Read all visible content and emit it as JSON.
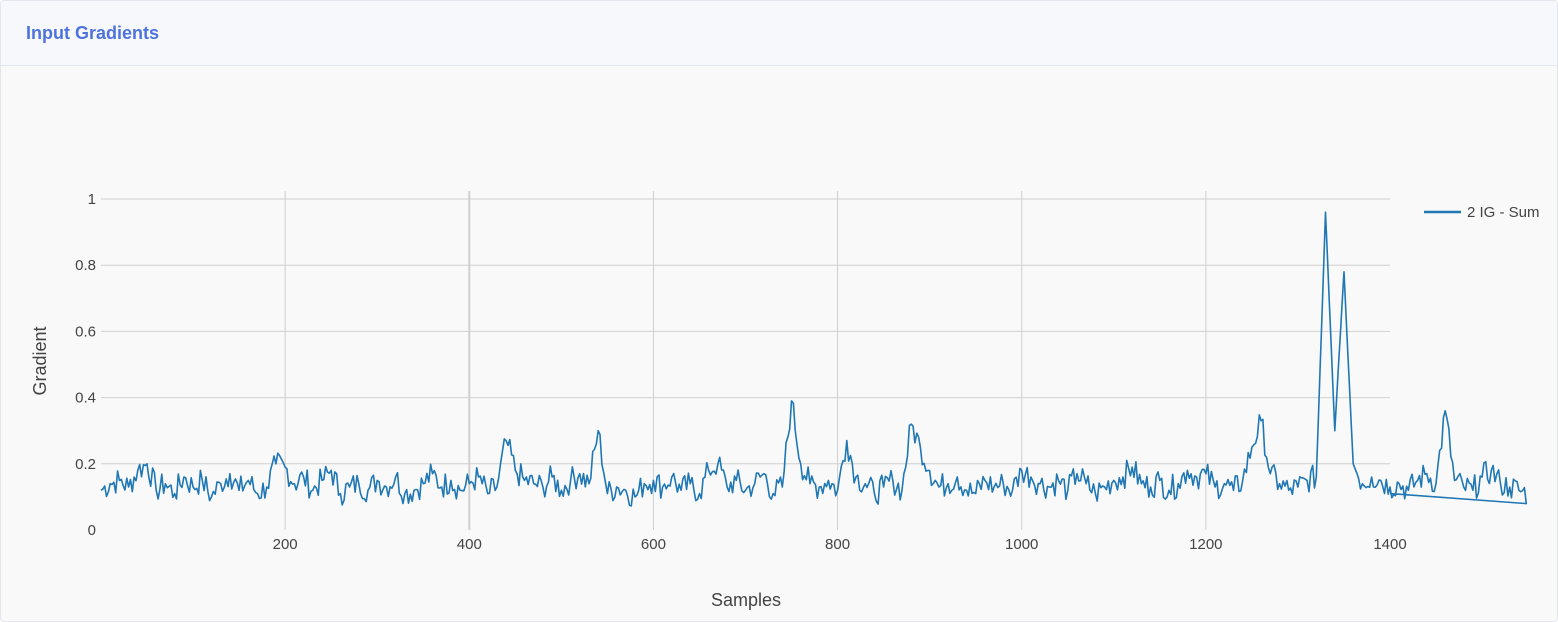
{
  "card": {
    "title": "Input Gradients"
  },
  "colors": {
    "accent": "#4e73df",
    "series": "#1f77b4",
    "grid": "#d0d0d0",
    "background": "#f9f9f9"
  },
  "chart_data": {
    "type": "line",
    "xlabel": "Samples",
    "ylabel": "Gradient",
    "xlim": [
      0,
      1400
    ],
    "ylim": [
      0,
      1
    ],
    "x_ticks": [
      200,
      400,
      600,
      800,
      1000,
      1200,
      1400
    ],
    "y_ticks": [
      0,
      0.2,
      0.4,
      0.6,
      0.8,
      1
    ],
    "y_tick_labels": [
      "0",
      "0.2",
      "0.4",
      "0.6",
      "0.8",
      "1"
    ],
    "x_tick_labels": [
      "200",
      "400",
      "600",
      "800",
      "1000",
      "1200",
      "1400"
    ],
    "grid": true,
    "legend_position": "top-right",
    "series": [
      {
        "name": "2 IG - Sum",
        "x_start": 0,
        "x_step": 10,
        "values": [
          0.12,
          0.14,
          0.15,
          0.13,
          0.18,
          0.2,
          0.12,
          0.14,
          0.11,
          0.16,
          0.13,
          0.15,
          0.1,
          0.14,
          0.17,
          0.12,
          0.15,
          0.11,
          0.13,
          0.2,
          0.19,
          0.14,
          0.16,
          0.12,
          0.15,
          0.18,
          0.11,
          0.13,
          0.14,
          0.12,
          0.15,
          0.13,
          0.16,
          0.11,
          0.12,
          0.14,
          0.17,
          0.13,
          0.15,
          0.12,
          0.14,
          0.16,
          0.11,
          0.13,
          0.27,
          0.18,
          0.15,
          0.14,
          0.13,
          0.16,
          0.12,
          0.15,
          0.17,
          0.14,
          0.3,
          0.11,
          0.13,
          0.12,
          0.1,
          0.14,
          0.15,
          0.13,
          0.16,
          0.12,
          0.14,
          0.11,
          0.18,
          0.2,
          0.13,
          0.15,
          0.12,
          0.14,
          0.17,
          0.11,
          0.13,
          0.39,
          0.2,
          0.14,
          0.13,
          0.15,
          0.12,
          0.27,
          0.16,
          0.14,
          0.11,
          0.13,
          0.15,
          0.12,
          0.32,
          0.25,
          0.18,
          0.13,
          0.14,
          0.16,
          0.12,
          0.11,
          0.15,
          0.13,
          0.14,
          0.12,
          0.18,
          0.16,
          0.14,
          0.13,
          0.15,
          0.12,
          0.17,
          0.14,
          0.11,
          0.13,
          0.15,
          0.16,
          0.19,
          0.14,
          0.13,
          0.15,
          0.12,
          0.14,
          0.18,
          0.16,
          0.17,
          0.13,
          0.14,
          0.12,
          0.15,
          0.25,
          0.33,
          0.17,
          0.14,
          0.12,
          0.13,
          0.15,
          0.16,
          0.96,
          0.3,
          0.78,
          0.2,
          0.14,
          0.16,
          0.15,
          0.13,
          0.14,
          0.12,
          0.15,
          0.17,
          0.14,
          0.36,
          0.15,
          0.13,
          0.12,
          0.16,
          0.18,
          0.14,
          0.13,
          0.12,
          0.11
        ]
      }
    ]
  }
}
